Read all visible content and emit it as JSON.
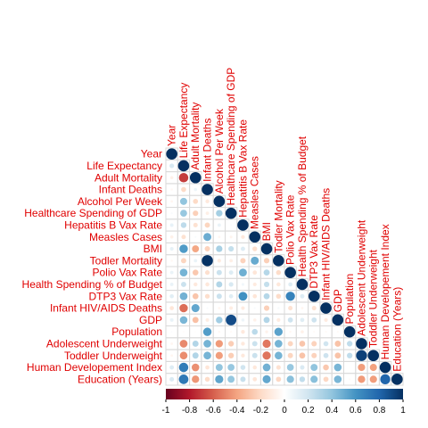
{
  "chart_data": {
    "type": "heatmap",
    "style": "correlation-matrix-lower-triangle-circles",
    "variables": [
      "Year",
      "Life Expectancy",
      "Adult Mortality",
      "Infant Deaths",
      "Alcohol Per Week",
      "Healthcare Spending of GDP",
      "Hepatitis B Vax Rate",
      "Measles Cases",
      "BMI",
      "Todler Mortality",
      "Polio Vax Rate",
      "Health Spending % of Budget",
      "DTP3 Vax Rate",
      "Infant HIV/AIDS Deaths",
      "GDP",
      "Population",
      "Adolescent Underweight",
      "Toddler Underweight",
      "Human Developement Index",
      "Education (Years)"
    ],
    "lower_triangle": [
      [
        1
      ],
      [
        0.17,
        1
      ],
      [
        -0.08,
        -0.7,
        1
      ],
      [
        -0.04,
        -0.2,
        0.08,
        1
      ],
      [
        -0.05,
        0.4,
        -0.2,
        -0.12,
        1
      ],
      [
        0.03,
        0.38,
        -0.24,
        -0.09,
        0.34,
        1
      ],
      [
        0.1,
        0.26,
        -0.16,
        -0.22,
        0.09,
        0.02,
        1
      ],
      [
        -0.08,
        -0.16,
        0.03,
        0.5,
        -0.05,
        -0.06,
        -0.12,
        1
      ],
      [
        0.11,
        0.57,
        -0.39,
        -0.23,
        0.33,
        0.24,
        0.15,
        -0.18,
        1
      ],
      [
        -0.04,
        -0.22,
        0.09,
        0.99,
        -0.11,
        -0.09,
        -0.23,
        0.51,
        -0.24,
        1
      ],
      [
        0.09,
        0.47,
        -0.27,
        -0.17,
        0.22,
        0.15,
        0.49,
        -0.14,
        0.29,
        -0.19,
        1
      ],
      [
        0.09,
        0.22,
        -0.12,
        -0.13,
        0.3,
        0.17,
        0.06,
        -0.11,
        0.24,
        -0.13,
        0.14,
        1
      ],
      [
        0.13,
        0.48,
        -0.28,
        -0.18,
        0.22,
        0.14,
        0.61,
        -0.14,
        0.29,
        -0.19,
        0.67,
        0.15,
        1
      ],
      [
        -0.14,
        -0.56,
        0.52,
        0.03,
        -0.05,
        -0.1,
        -0.11,
        0.03,
        -0.24,
        0.04,
        -0.16,
        -0.05,
        -0.16,
        1
      ],
      [
        0.1,
        0.46,
        -0.3,
        -0.1,
        0.35,
        0.9,
        0.08,
        -0.08,
        0.3,
        -0.11,
        0.21,
        0.14,
        0.21,
        -0.11,
        1
      ],
      [
        0.02,
        -0.02,
        -0.01,
        0.56,
        -0.04,
        -0.03,
        -0.12,
        0.27,
        -0.07,
        0.54,
        -0.04,
        -0.08,
        -0.03,
        -0.03,
        -0.03,
        1
      ],
      [
        -0.05,
        -0.48,
        0.3,
        0.47,
        -0.43,
        -0.25,
        -0.12,
        0.22,
        -0.53,
        0.47,
        -0.22,
        -0.28,
        -0.23,
        0.2,
        -0.29,
        0.25,
        1
      ],
      [
        -0.05,
        -0.47,
        0.3,
        0.47,
        -0.42,
        -0.25,
        -0.12,
        0.22,
        -0.54,
        0.47,
        -0.22,
        -0.29,
        -0.23,
        0.21,
        -0.29,
        0.25,
        0.94,
        1
      ],
      [
        0.15,
        0.7,
        -0.46,
        -0.14,
        0.4,
        0.38,
        0.2,
        -0.13,
        0.48,
        -0.16,
        0.38,
        0.16,
        0.4,
        -0.27,
        0.46,
        -0.01,
        -0.42,
        -0.41,
        1
      ],
      [
        0.16,
        0.72,
        -0.44,
        -0.19,
        0.53,
        0.39,
        0.23,
        -0.14,
        0.52,
        -0.21,
        0.42,
        0.25,
        0.42,
        -0.21,
        0.46,
        -0.03,
        -0.43,
        -0.42,
        0.8,
        1
      ]
    ],
    "colorbar": {
      "range": [
        -1,
        1
      ],
      "ticks": [
        "-1",
        "-0.8",
        "-0.6",
        "-0.4",
        "-0.2",
        "0",
        "0.2",
        "0.4",
        "0.6",
        "0.8",
        "1"
      ],
      "colors": [
        "#67001F",
        "#B2182B",
        "#D6604D",
        "#F4A582",
        "#FDDBC7",
        "#FFFFFF",
        "#D1E5F0",
        "#92C5DE",
        "#4393C3",
        "#2166AC",
        "#053061"
      ]
    },
    "label_color": "#e00000",
    "grid_color": "#d9d9d9",
    "diagonal_labels": true,
    "legend_placement": "bottom"
  }
}
